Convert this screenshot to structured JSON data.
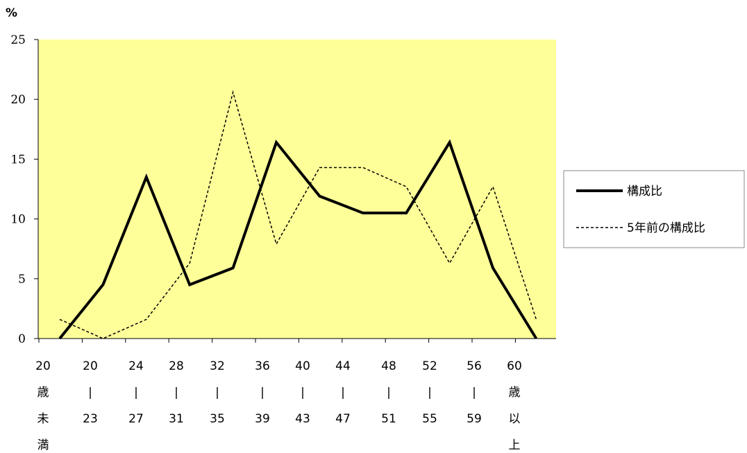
{
  "chart_data": {
    "type": "line",
    "unit_label": "%",
    "ylim": [
      0,
      25
    ],
    "yticks": [
      "0",
      "5",
      "10",
      "15",
      "20",
      "25"
    ],
    "plot_bg": "#ffff99",
    "x_label_lines": [
      [
        "20",
        "歳",
        "未",
        "満"
      ],
      [
        "20",
        "|",
        "23"
      ],
      [
        "24",
        "|",
        "27"
      ],
      [
        "28",
        "|",
        "31"
      ],
      [
        "32",
        "|",
        "35"
      ],
      [
        "36",
        "|",
        "39"
      ],
      [
        "40",
        "|",
        "43"
      ],
      [
        "44",
        "|",
        "47"
      ],
      [
        "48",
        "|",
        "51"
      ],
      [
        "52",
        "|",
        "55"
      ],
      [
        "56",
        "|",
        "59"
      ],
      [
        "60",
        "歳",
        "以",
        "上"
      ]
    ],
    "series": [
      {
        "name": "構成比",
        "style": "solid",
        "color": "#000000",
        "values": [
          0,
          4.5,
          13.5,
          4.5,
          5.9,
          16.4,
          11.9,
          10.5,
          10.5,
          16.4,
          5.9,
          0
        ]
      },
      {
        "name": "5年前の構成比",
        "style": "dashed",
        "color": "#000000",
        "values": [
          1.6,
          0,
          1.6,
          6.3,
          20.6,
          7.9,
          14.3,
          14.3,
          12.7,
          6.3,
          12.7,
          1.6
        ]
      }
    ],
    "legend_position": "right",
    "grid": false
  }
}
